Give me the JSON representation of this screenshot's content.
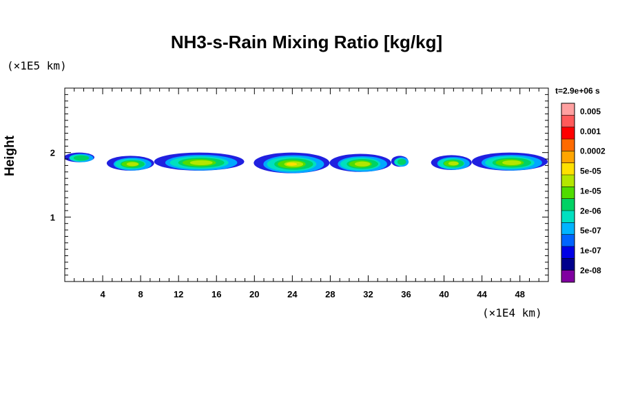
{
  "chart_data": {
    "type": "heatmap",
    "title": "NH3-s-Rain Mixing Ratio [kg/kg]",
    "ylabel": "Height",
    "y_unit": "(×1E5 km)",
    "x_unit": "(×1E4 km)",
    "time_label": "t=2.9e+06 s",
    "xlim": [
      0,
      51
    ],
    "ylim": [
      0,
      3
    ],
    "x_ticks": [
      4,
      8,
      12,
      16,
      20,
      24,
      28,
      32,
      36,
      40,
      44,
      48
    ],
    "y_ticks": [
      1,
      2
    ],
    "colorbar": {
      "labels": [
        "0.005",
        "0.001",
        "0.0002",
        "5e-05",
        "1e-05",
        "2e-06",
        "5e-07",
        "1e-07",
        "2e-08"
      ],
      "colors": [
        "#ffa0a0",
        "#ff5a5a",
        "#ff0000",
        "#ff6a00",
        "#ffa500",
        "#ffe000",
        "#b4e600",
        "#50dc00",
        "#00d264",
        "#00e0c0",
        "#00b4ff",
        "#0064ff",
        "#0000e6",
        "#00008c",
        "#8000a0"
      ]
    },
    "cloud_segments": [
      {
        "x": [
          0.0,
          3.2
        ],
        "y": [
          1.85,
          2.0
        ],
        "core": "low"
      },
      {
        "x": [
          4.5,
          9.5
        ],
        "y": [
          1.72,
          1.95
        ],
        "core": "mid"
      },
      {
        "x": [
          9.5,
          19.0
        ],
        "y": [
          1.72,
          2.0
        ],
        "core": "mid"
      },
      {
        "x": [
          20.0,
          28.0
        ],
        "y": [
          1.68,
          2.0
        ],
        "core": "high"
      },
      {
        "x": [
          28.0,
          34.5
        ],
        "y": [
          1.7,
          1.98
        ],
        "core": "mid"
      },
      {
        "x": [
          34.5,
          36.3
        ],
        "y": [
          1.78,
          1.95
        ],
        "core": "low"
      },
      {
        "x": [
          38.7,
          43.0
        ],
        "y": [
          1.73,
          1.96
        ],
        "core": "mid"
      },
      {
        "x": [
          43.0,
          51.0
        ],
        "y": [
          1.72,
          2.0
        ],
        "core": "mid"
      }
    ]
  }
}
